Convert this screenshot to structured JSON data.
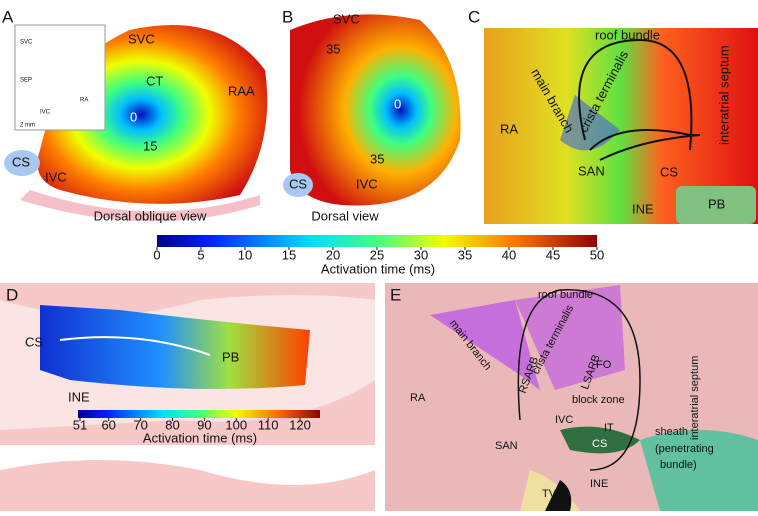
{
  "panel_a": {
    "letter": "A",
    "inset": [
      "SVC",
      "SEP",
      "RA",
      "IVC",
      "2 mm"
    ],
    "labels": [
      "SVC",
      "CT",
      "RAA",
      "0",
      "15",
      "CS",
      "IVC"
    ],
    "caption": "Dorsal oblique view"
  },
  "panel_b": {
    "letter": "B",
    "labels": [
      "SVC",
      "35",
      "0",
      "35",
      "CS",
      "IVC"
    ],
    "caption": "Dorsal view"
  },
  "panel_c": {
    "letter": "C",
    "labels": [
      "roof bundle",
      "main branch",
      "crista terminalis",
      "interatrial septum",
      "RA",
      "SAN",
      "CS",
      "INE",
      "PB"
    ]
  },
  "colorbar_top": {
    "ticks": [
      0,
      5,
      10,
      15,
      20,
      25,
      30,
      35,
      40,
      45,
      50
    ],
    "label": "Activation time (ms)"
  },
  "panel_d": {
    "letter": "D",
    "labels": [
      "CS",
      "PB",
      "INE"
    ]
  },
  "colorbar_bottom": {
    "ticks": [
      51,
      60,
      70,
      80,
      90,
      100,
      110,
      120
    ],
    "label": "Activation time (ms)"
  },
  "panel_e": {
    "letter": "E",
    "labels": [
      "roof bundle",
      "interatrial septum",
      "main branch",
      "crista terminalis",
      "FO",
      "LSARB",
      "RSARB",
      "RA",
      "block zone",
      "IVC",
      "IT",
      "CS",
      "SAN",
      "sheath",
      "(penetrating",
      "bundle)",
      "INE",
      "TV"
    ]
  }
}
